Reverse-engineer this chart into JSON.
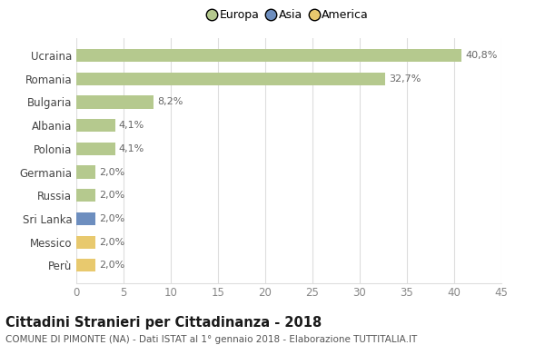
{
  "countries": [
    "Ucraina",
    "Romania",
    "Bulgaria",
    "Albania",
    "Polonia",
    "Germania",
    "Russia",
    "Sri Lanka",
    "Messico",
    "Perù"
  ],
  "values": [
    40.8,
    32.7,
    8.2,
    4.1,
    4.1,
    2.0,
    2.0,
    2.0,
    2.0,
    2.0
  ],
  "labels": [
    "40,8%",
    "32,7%",
    "8,2%",
    "4,1%",
    "4,1%",
    "2,0%",
    "2,0%",
    "2,0%",
    "2,0%",
    "2,0%"
  ],
  "colors": [
    "#b5c98e",
    "#b5c98e",
    "#b5c98e",
    "#b5c98e",
    "#b5c98e",
    "#b5c98e",
    "#b5c98e",
    "#6d8ebf",
    "#e8c96e",
    "#e8c96e"
  ],
  "legend_labels": [
    "Europa",
    "Asia",
    "America"
  ],
  "legend_colors": [
    "#b5c98e",
    "#6d8ebf",
    "#e8c96e"
  ],
  "title": "Cittadini Stranieri per Cittadinanza - 2018",
  "subtitle": "COMUNE DI PIMONTE (NA) - Dati ISTAT al 1° gennaio 2018 - Elaborazione TUTTITALIA.IT",
  "xlim": [
    0,
    45
  ],
  "xticks": [
    0,
    5,
    10,
    15,
    20,
    25,
    30,
    35,
    40,
    45
  ],
  "bg_color": "#ffffff",
  "grid_color": "#dddddd",
  "bar_height": 0.55
}
